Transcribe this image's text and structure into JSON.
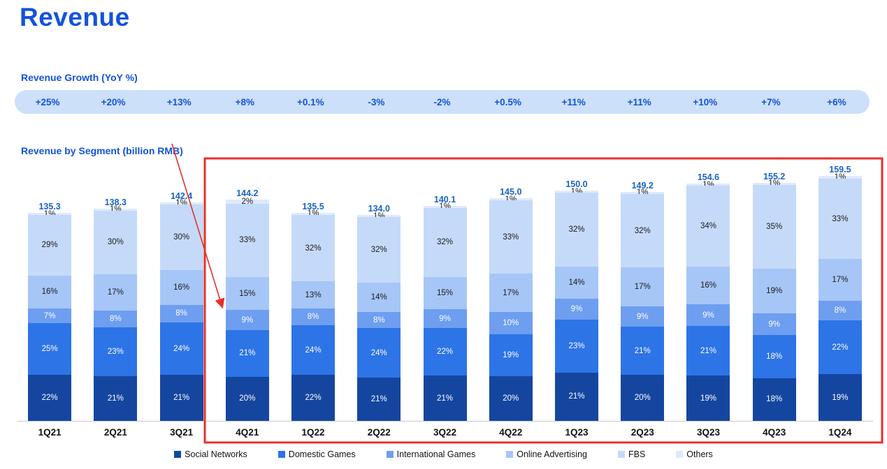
{
  "page": {
    "title": "Revenue"
  },
  "colors": {
    "accent_blue": "#1353DB",
    "totals_blue": "#1763C9",
    "banner_bg": "#CCE0FA",
    "highlight": "#E8302A",
    "axis_text": "#111111"
  },
  "growth": {
    "label": "Revenue Growth (YoY %)",
    "values": [
      "+25%",
      "+20%",
      "+13%",
      "+8%",
      "+0.1%",
      "-3%",
      "-2%",
      "+0.5%",
      "+11%",
      "+11%",
      "+10%",
      "+7%",
      "+6%"
    ]
  },
  "chart_data": {
    "type": "bar",
    "stacked": true,
    "title": "Revenue by Segment (billion RMB)",
    "units": "billion RMB",
    "categories": [
      "1Q21",
      "2Q21",
      "3Q21",
      "4Q21",
      "1Q22",
      "2Q22",
      "3Q22",
      "4Q22",
      "1Q23",
      "2Q23",
      "3Q23",
      "4Q23",
      "1Q24"
    ],
    "totals": [
      135.3,
      138.3,
      142.4,
      144.2,
      135.5,
      134.0,
      140.1,
      145.0,
      150.0,
      149.2,
      154.6,
      155.2,
      159.5
    ],
    "series": [
      {
        "name": "Social Networks",
        "color": "#15469F",
        "label_color": "#ffffff",
        "values_pct": [
          22,
          21,
          21,
          20,
          22,
          21,
          21,
          20,
          21,
          20,
          19,
          18,
          19
        ]
      },
      {
        "name": "Domestic Games",
        "color": "#2D74E7",
        "label_color": "#ffffff",
        "values_pct": [
          25,
          23,
          24,
          21,
          24,
          24,
          22,
          19,
          23,
          21,
          21,
          18,
          22
        ]
      },
      {
        "name": "International Games",
        "color": "#6E9EF0",
        "label_color": "#ffffff",
        "values_pct": [
          7,
          8,
          8,
          9,
          8,
          8,
          9,
          10,
          9,
          9,
          9,
          9,
          8
        ]
      },
      {
        "name": "Online Advertising",
        "color": "#A6C6F7",
        "label_color": "#1a1a1a",
        "values_pct": [
          16,
          17,
          16,
          15,
          13,
          14,
          15,
          17,
          14,
          17,
          16,
          19,
          17
        ]
      },
      {
        "name": "FBS",
        "color": "#C5DAF9",
        "label_color": "#1a1a1a",
        "values_pct": [
          29,
          30,
          30,
          33,
          32,
          32,
          32,
          33,
          32,
          32,
          34,
          35,
          33
        ]
      },
      {
        "name": "Others",
        "color": "#DEEAFC",
        "label_color": "#1a1a1a",
        "values_pct": [
          1,
          1,
          1,
          2,
          1,
          1,
          1,
          1,
          1,
          1,
          1,
          1,
          1
        ]
      }
    ],
    "legend_position": "bottom",
    "highlight_range": {
      "from": "4Q21",
      "to": "1Q24"
    }
  }
}
